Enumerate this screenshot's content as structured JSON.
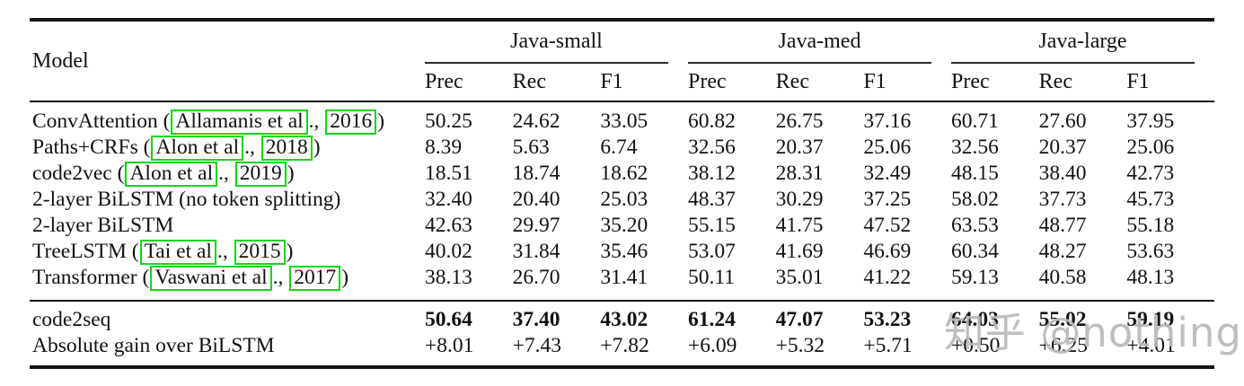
{
  "colors": {
    "annotation_box": "#16d416",
    "watermark": "#b9b9b9",
    "rule": "#151515"
  },
  "watermark": {
    "text": "知乎 @nothing"
  },
  "table": {
    "header": {
      "model_col": "Model",
      "groups": [
        {
          "label": "Java-small",
          "cols": [
            "Prec",
            "Rec",
            "F1"
          ]
        },
        {
          "label": "Java-med",
          "cols": [
            "Prec",
            "Rec",
            "F1"
          ]
        },
        {
          "label": "Java-large",
          "cols": [
            "Prec",
            "Rec",
            "F1"
          ]
        }
      ]
    },
    "rows": [
      {
        "model": [
          {
            "t": "ConvAttention (",
            "b": false
          },
          {
            "t": "Allamanis et al",
            "b": true
          },
          {
            "t": "., ",
            "b": false
          },
          {
            "t": "2016",
            "b": true
          },
          {
            "t": ")",
            "b": false
          }
        ],
        "values": [
          "50.25",
          "24.62",
          "33.05",
          "60.82",
          "26.75",
          "37.16",
          "60.71",
          "27.60",
          "37.95"
        ]
      },
      {
        "model": [
          {
            "t": "Paths+CRFs (",
            "b": false
          },
          {
            "t": "Alon et al",
            "b": true
          },
          {
            "t": "., ",
            "b": false
          },
          {
            "t": "2018",
            "b": true
          },
          {
            "t": ")",
            "b": false
          }
        ],
        "values": [
          "8.39",
          "5.63",
          "6.74",
          "32.56",
          "20.37",
          "25.06",
          "32.56",
          "20.37",
          "25.06"
        ]
      },
      {
        "model": [
          {
            "t": "code2vec (",
            "b": false
          },
          {
            "t": "Alon et al",
            "b": true
          },
          {
            "t": "., ",
            "b": false
          },
          {
            "t": "2019",
            "b": true
          },
          {
            "t": ")",
            "b": false
          }
        ],
        "values": [
          "18.51",
          "18.74",
          "18.62",
          "38.12",
          "28.31",
          "32.49",
          "48.15",
          "38.40",
          "42.73"
        ]
      },
      {
        "model": [
          {
            "t": "2-layer BiLSTM (no token splitting)",
            "b": false
          }
        ],
        "values": [
          "32.40",
          "20.40",
          "25.03",
          "48.37",
          "30.29",
          "37.25",
          "58.02",
          "37.73",
          "45.73"
        ]
      },
      {
        "model": [
          {
            "t": "2-layer BiLSTM",
            "b": false
          }
        ],
        "values": [
          "42.63",
          "29.97",
          "35.20",
          "55.15",
          "41.75",
          "47.52",
          "63.53",
          "48.77",
          "55.18"
        ]
      },
      {
        "model": [
          {
            "t": "TreeLSTM (",
            "b": false
          },
          {
            "t": "Tai et al",
            "b": true
          },
          {
            "t": "., ",
            "b": false
          },
          {
            "t": "2015",
            "b": true
          },
          {
            "t": ")",
            "b": false
          }
        ],
        "values": [
          "40.02",
          "31.84",
          "35.46",
          "53.07",
          "41.69",
          "46.69",
          "60.34",
          "48.27",
          "53.63"
        ]
      },
      {
        "model": [
          {
            "t": "Transformer (",
            "b": false
          },
          {
            "t": "Vaswani et al",
            "b": true
          },
          {
            "t": "., ",
            "b": false
          },
          {
            "t": "2017",
            "b": true
          },
          {
            "t": ")",
            "b": false
          }
        ],
        "values": [
          "38.13",
          "26.70",
          "31.41",
          "50.11",
          "35.01",
          "41.22",
          "59.13",
          "40.58",
          "48.13"
        ]
      }
    ],
    "summary_rows": [
      {
        "model": [
          {
            "t": "code2seq",
            "b": false
          }
        ],
        "values": [
          "50.64",
          "37.40",
          "43.02",
          "61.24",
          "47.07",
          "53.23",
          "64.03",
          "55.02",
          "59.19"
        ],
        "bold_values": true
      },
      {
        "model": [
          {
            "t": "Absolute gain over BiLSTM",
            "b": false
          }
        ],
        "values": [
          "+8.01",
          "+7.43",
          "+7.82",
          "+6.09",
          "+5.32",
          "+5.71",
          "+0.50",
          "+6.25",
          "+4.01"
        ],
        "bold_values": false
      }
    ]
  }
}
